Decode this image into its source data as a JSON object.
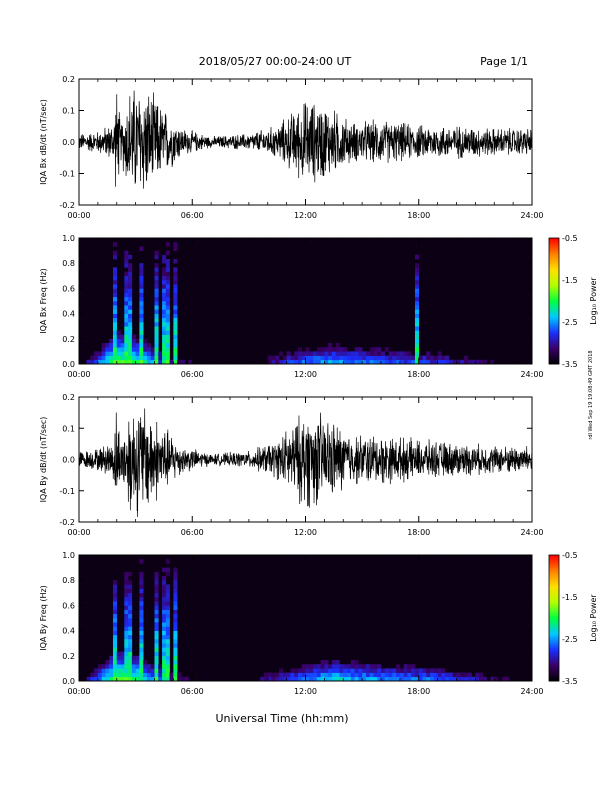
{
  "header": {
    "title": "2018/05/27  00:00-24:00 UT",
    "page": "Page 1/1"
  },
  "side_stamp": "rdl Wed Sep 19 19:08:49 GMT 2018",
  "x_axis": {
    "label": "Universal Time (hh:mm)",
    "ticks": [
      "00:00",
      "06:00",
      "12:00",
      "18:00",
      "24:00"
    ]
  },
  "colorbar": {
    "label": "Log₁₀ Power",
    "ticks": [
      "-0.5",
      "-1.5",
      "-2.5",
      "-3.5"
    ],
    "range": [
      -3.5,
      -0.5
    ],
    "colors": [
      "#000000",
      "#3a0066",
      "#1a30ff",
      "#00c8ff",
      "#00ff40",
      "#b0ff00",
      "#ffe000",
      "#ff8000",
      "#ff0000"
    ]
  },
  "chart_data": [
    {
      "type": "line",
      "ylabel": "IQA Bx dB/dt (nT/sec)",
      "xlim": [
        0,
        24
      ],
      "ylim": [
        -0.2,
        0.2
      ],
      "yticks": [
        "0.2",
        "0.1",
        "0.0",
        "-0.1",
        "-0.2"
      ],
      "amplitude_envelope": [
        {
          "t": 0.0,
          "amp": 0.03
        },
        {
          "t": 1.0,
          "amp": 0.04
        },
        {
          "t": 1.8,
          "amp": 0.07
        },
        {
          "t": 2.0,
          "amp": 0.2
        },
        {
          "t": 2.2,
          "amp": 0.07
        },
        {
          "t": 2.7,
          "amp": 0.2
        },
        {
          "t": 3.5,
          "amp": 0.2
        },
        {
          "t": 4.5,
          "amp": 0.12
        },
        {
          "t": 5.5,
          "amp": 0.05
        },
        {
          "t": 7.0,
          "amp": 0.02
        },
        {
          "t": 9.0,
          "amp": 0.03
        },
        {
          "t": 10.5,
          "amp": 0.06
        },
        {
          "t": 12.0,
          "amp": 0.15
        },
        {
          "t": 13.0,
          "amp": 0.14
        },
        {
          "t": 14.5,
          "amp": 0.07
        },
        {
          "t": 16.0,
          "amp": 0.08
        },
        {
          "t": 18.0,
          "amp": 0.06
        },
        {
          "t": 20.0,
          "amp": 0.06
        },
        {
          "t": 22.0,
          "amp": 0.05
        },
        {
          "t": 24.0,
          "amp": 0.05
        }
      ]
    },
    {
      "type": "heatmap",
      "ylabel": "IQA Bx Freq (Hz)",
      "xlim": [
        0,
        24
      ],
      "ylim": [
        0.0,
        1.0
      ],
      "yticks": [
        "1.0",
        "0.8",
        "0.6",
        "0.4",
        "0.2",
        "0.0"
      ],
      "vertical_bursts_hours": [
        1.9,
        2.6,
        3.3,
        4.1,
        4.6,
        5.1,
        17.9
      ],
      "low_freq_band": [
        {
          "t": 0.0,
          "power": -3.2
        },
        {
          "t": 2.0,
          "power": -1.6
        },
        {
          "t": 3.0,
          "power": -1.8
        },
        {
          "t": 5.0,
          "power": -2.8
        },
        {
          "t": 8.0,
          "power": -3.4
        },
        {
          "t": 11.0,
          "power": -2.6
        },
        {
          "t": 13.0,
          "power": -2.2
        },
        {
          "t": 16.0,
          "power": -2.4
        },
        {
          "t": 19.0,
          "power": -2.6
        },
        {
          "t": 24.0,
          "power": -3.3
        }
      ]
    },
    {
      "type": "line",
      "ylabel": "IQA By dB/dt (nT/sec)",
      "xlim": [
        0,
        24
      ],
      "ylim": [
        -0.2,
        0.2
      ],
      "yticks": [
        "0.2",
        "0.1",
        "0.0",
        "-0.1",
        "-0.2"
      ],
      "amplitude_envelope": [
        {
          "t": 0.0,
          "amp": 0.03
        },
        {
          "t": 1.0,
          "amp": 0.04
        },
        {
          "t": 1.8,
          "amp": 0.07
        },
        {
          "t": 2.0,
          "amp": 0.2
        },
        {
          "t": 2.2,
          "amp": 0.07
        },
        {
          "t": 2.7,
          "amp": 0.2
        },
        {
          "t": 3.5,
          "amp": 0.2
        },
        {
          "t": 4.5,
          "amp": 0.12
        },
        {
          "t": 5.5,
          "amp": 0.05
        },
        {
          "t": 7.0,
          "amp": 0.02
        },
        {
          "t": 9.0,
          "amp": 0.03
        },
        {
          "t": 10.5,
          "amp": 0.07
        },
        {
          "t": 12.0,
          "amp": 0.18
        },
        {
          "t": 13.0,
          "amp": 0.16
        },
        {
          "t": 14.5,
          "amp": 0.09
        },
        {
          "t": 16.0,
          "amp": 0.09
        },
        {
          "t": 18.0,
          "amp": 0.07
        },
        {
          "t": 20.0,
          "amp": 0.06
        },
        {
          "t": 22.0,
          "amp": 0.05
        },
        {
          "t": 24.0,
          "amp": 0.05
        }
      ]
    },
    {
      "type": "heatmap",
      "ylabel": "IQA By Freq (Hz)",
      "xlim": [
        0,
        24
      ],
      "ylim": [
        0.0,
        1.0
      ],
      "yticks": [
        "1.0",
        "0.8",
        "0.6",
        "0.4",
        "0.2",
        "0.0"
      ],
      "vertical_bursts_hours": [
        1.9,
        2.6,
        3.3,
        4.1,
        4.6,
        5.1
      ],
      "low_freq_band": [
        {
          "t": 0.0,
          "power": -3.2
        },
        {
          "t": 2.0,
          "power": -1.6
        },
        {
          "t": 3.0,
          "power": -1.8
        },
        {
          "t": 5.0,
          "power": -2.8
        },
        {
          "t": 8.0,
          "power": -3.4
        },
        {
          "t": 11.0,
          "power": -2.5
        },
        {
          "t": 13.5,
          "power": -2.1
        },
        {
          "t": 16.0,
          "power": -2.3
        },
        {
          "t": 19.0,
          "power": -2.4
        },
        {
          "t": 24.0,
          "power": -3.3
        }
      ]
    }
  ]
}
